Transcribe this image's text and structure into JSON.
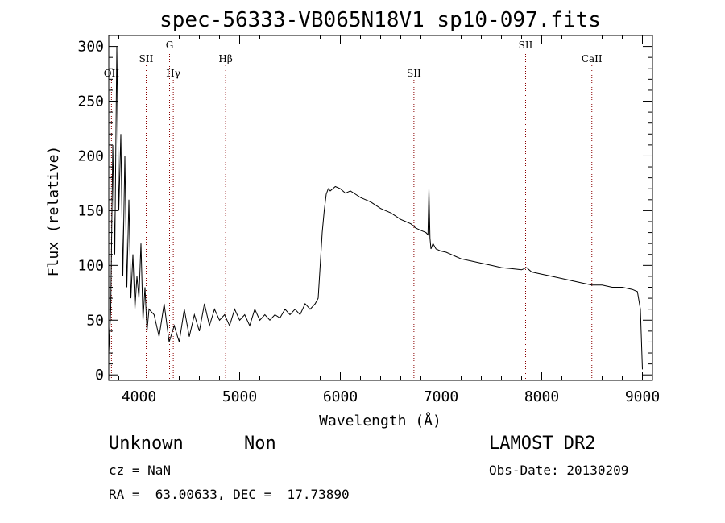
{
  "chart_data": {
    "type": "line",
    "title": "spec-56333-VB065N18V1_sp10-097.fits",
    "xlabel": "Wavelength (Å)",
    "ylabel": "Flux (relative)",
    "xlim": [
      3700,
      9100
    ],
    "ylim": [
      -5,
      310
    ],
    "x_ticks": [
      4000,
      5000,
      6000,
      7000,
      8000,
      9000
    ],
    "y_ticks": [
      0,
      50,
      100,
      150,
      200,
      250,
      300
    ],
    "grid": false,
    "legend": "none",
    "series": [
      {
        "x": [
          3700,
          3720,
          3740,
          3760,
          3780,
          3800,
          3820,
          3840,
          3860,
          3880,
          3900,
          3920,
          3940,
          3960,
          3980,
          4000,
          4020,
          4040,
          4060,
          4080,
          4100,
          4150,
          4200,
          4250,
          4300,
          4350,
          4400,
          4450,
          4500,
          4550,
          4600,
          4650,
          4700,
          4750,
          4800,
          4850,
          4900,
          4950,
          5000,
          5050,
          5100,
          5150,
          5200,
          5250,
          5300,
          5350,
          5400,
          5450,
          5500,
          5550,
          5600,
          5650,
          5700,
          5750,
          5780,
          5800,
          5820,
          5840,
          5860,
          5880,
          5900,
          5950,
          6000,
          6050,
          6100,
          6150,
          6200,
          6250,
          6300,
          6350,
          6400,
          6450,
          6500,
          6550,
          6600,
          6650,
          6700,
          6750,
          6800,
          6850,
          6870,
          6880,
          6890,
          6900,
          6920,
          6950,
          7000,
          7050,
          7100,
          7150,
          7200,
          7300,
          7400,
          7500,
          7600,
          7700,
          7800,
          7850,
          7900,
          8000,
          8100,
          8200,
          8300,
          8400,
          8500,
          8600,
          8700,
          8800,
          8900,
          8950,
          8980,
          9000
        ],
        "y": [
          20,
          60,
          210,
          110,
          300,
          150,
          220,
          90,
          200,
          80,
          160,
          70,
          110,
          60,
          90,
          70,
          120,
          50,
          80,
          40,
          60,
          55,
          35,
          65,
          30,
          45,
          30,
          60,
          35,
          55,
          40,
          65,
          45,
          60,
          50,
          55,
          45,
          60,
          50,
          55,
          45,
          60,
          50,
          55,
          50,
          55,
          52,
          60,
          55,
          60,
          55,
          65,
          60,
          65,
          70,
          100,
          130,
          150,
          165,
          170,
          168,
          172,
          170,
          166,
          168,
          165,
          162,
          160,
          158,
          155,
          152,
          150,
          148,
          145,
          142,
          140,
          138,
          134,
          132,
          130,
          128,
          170,
          125,
          115,
          120,
          115,
          113,
          112,
          110,
          108,
          106,
          104,
          102,
          100,
          98,
          97,
          96,
          98,
          94,
          92,
          90,
          88,
          86,
          84,
          82,
          82,
          80,
          80,
          78,
          76,
          60,
          5
        ]
      }
    ],
    "lines": [
      {
        "label": "OII",
        "x": 3727,
        "row": 2
      },
      {
        "label": "SII",
        "x": 4072,
        "row": 1
      },
      {
        "label": "G",
        "x": 4304,
        "row": 0
      },
      {
        "label": "Hγ",
        "x": 4341,
        "row": 2
      },
      {
        "label": "Hβ",
        "x": 4861,
        "row": 1
      },
      {
        "label": "SII",
        "x": 6731,
        "row": 2
      },
      {
        "label": "SII",
        "x": 7840,
        "row": 0
      },
      {
        "label": "CaII",
        "x": 8498,
        "row": 1
      }
    ]
  },
  "info": {
    "class": "Unknown",
    "subclass": "Non",
    "cz": "cz = NaN",
    "coords": "RA =  63.00633, DEC =  17.73890",
    "survey": "LAMOST DR2",
    "obs_date": "Obs-Date: 20130209"
  }
}
